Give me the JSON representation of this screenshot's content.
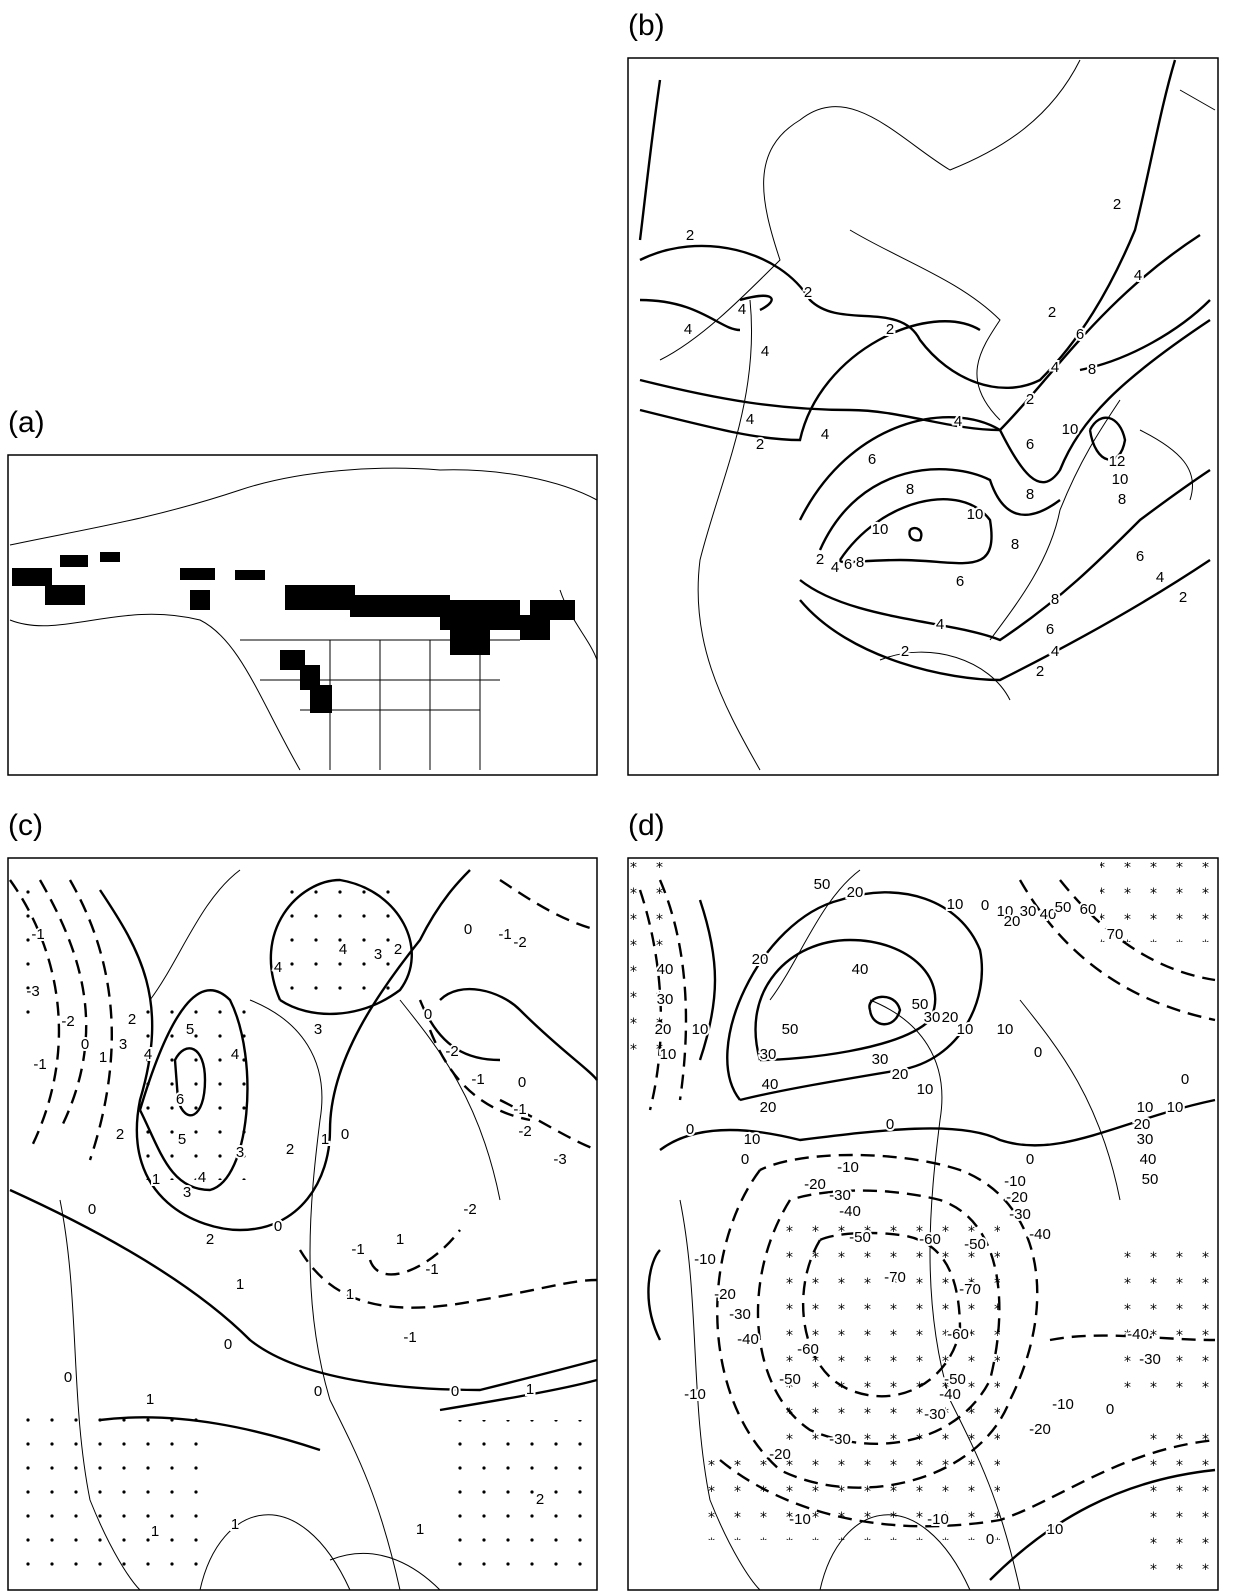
{
  "panels": [
    {
      "label": "(a)"
    },
    {
      "label": "(b)",
      "contour_labels": [
        2,
        4,
        4,
        2,
        4,
        2,
        4,
        2,
        4,
        4,
        2,
        2,
        2,
        4,
        6,
        8,
        4,
        10,
        12,
        10,
        8,
        6,
        6,
        8,
        10,
        10,
        8,
        8,
        2,
        4,
        6,
        8,
        6,
        6,
        4,
        2,
        8,
        6,
        4,
        4,
        2,
        2
      ]
    },
    {
      "label": "(c)",
      "contour_labels": [
        -1,
        -3,
        -2,
        -1,
        0,
        1,
        2,
        3,
        4,
        5,
        6,
        5,
        4,
        3,
        2,
        1,
        0,
        4,
        3,
        2,
        4,
        4,
        3,
        2,
        0,
        -1,
        -2,
        3,
        0,
        -2,
        -1,
        0,
        -1,
        -2,
        -3,
        1,
        0,
        0,
        2,
        1,
        -1,
        1,
        -2,
        -1,
        1,
        -1,
        0,
        0,
        0,
        1,
        0,
        1,
        2,
        1,
        1,
        1
      ]
    },
    {
      "label": "(d)",
      "contour_labels": [
        20,
        10,
        0,
        10,
        20,
        30,
        40,
        50,
        60,
        70,
        40,
        30,
        20,
        10,
        0,
        10,
        30,
        40,
        20,
        20,
        50,
        50,
        40,
        50,
        30,
        20,
        10,
        30,
        20,
        10,
        0,
        10,
        0,
        10,
        0,
        -10,
        -20,
        -30,
        -40,
        -50,
        -60,
        -70,
        -70,
        -60,
        -50,
        -40,
        -30,
        -20,
        0,
        -10,
        -20,
        -30,
        -40,
        -50,
        10,
        20,
        30,
        40,
        50,
        0,
        10,
        -10,
        -20,
        -30,
        -40,
        -50,
        -60,
        -40,
        -30,
        -10,
        -10,
        0,
        -30,
        -20,
        -10,
        -10,
        0,
        10
      ]
    }
  ]
}
